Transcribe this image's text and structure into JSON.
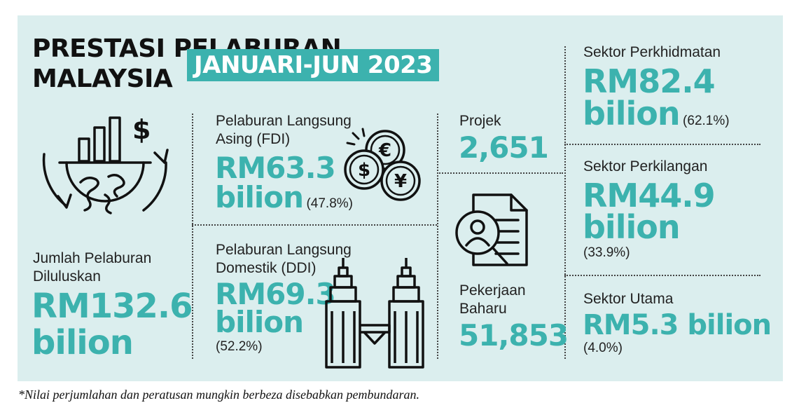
{
  "header": {
    "title_line1": "PRESTASI PELABURAN",
    "title_line2": "MALAYSIA",
    "highlight": "JANUARI-JUN 2023"
  },
  "total": {
    "label": "Jumlah Pelaburan Diluluskan",
    "value": "RM132.6",
    "unit": "bilion"
  },
  "fdi": {
    "label": "Pelaburan Langsung Asing (FDI)",
    "value": "RM63.3",
    "unit": "bilion",
    "pct": "(47.8%)"
  },
  "ddi": {
    "label": "Pelaburan Langsung Domestik (DDI)",
    "value": "RM69.3",
    "unit": "bilion",
    "pct": "(52.2%)"
  },
  "projects": {
    "label": "Projek",
    "value": "2,651"
  },
  "jobs": {
    "label_line1": "Pekerjaan",
    "label_line2": "Baharu",
    "value": "51,853"
  },
  "sectors": {
    "services": {
      "label": "Sektor Perkhidmatan",
      "value": "RM82.4",
      "unit": "bilion",
      "pct": "(62.1%)"
    },
    "manufacturing": {
      "label": "Sektor Perkilangan",
      "value": "RM44.9",
      "unit": "bilion",
      "pct": "(33.9%)"
    },
    "primary": {
      "label": "Sektor Utama",
      "value": "RM5.3 bilion",
      "pct": "(4.0%)"
    }
  },
  "footnote": "*Nilai perjumlahan dan peratusan mungkin berbeza disebabkan pembundaran.",
  "colors": {
    "accent": "#3cb2ae",
    "panel": "#dbeeee",
    "text": "#111111"
  },
  "icons": [
    "growth-globe-icon",
    "coins-icon",
    "petronas-towers-icon",
    "document-search-icon"
  ]
}
